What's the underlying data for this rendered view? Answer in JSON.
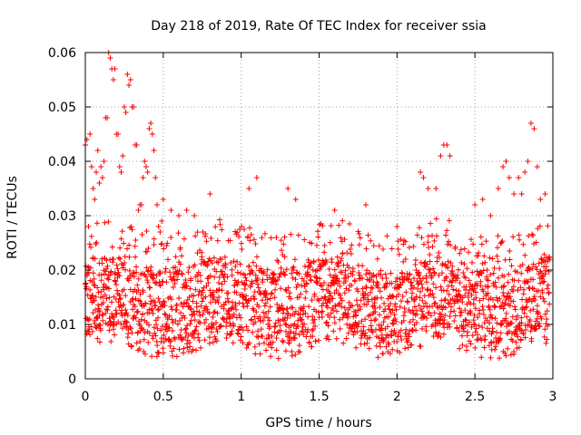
{
  "colors": {
    "points": "#ff0000",
    "grid": "#a0a0a0",
    "axis": "#000000",
    "background": "#ffffff"
  },
  "chart_data": {
    "type": "scatter",
    "title": "Day 218 of 2019, Rate Of TEC Index for receiver ssia",
    "xlabel": "GPS time / hours",
    "ylabel": "ROTI / TECUs",
    "xlim": [
      0,
      3
    ],
    "ylim": [
      0,
      0.06
    ],
    "xticks": [
      0,
      0.5,
      1,
      1.5,
      2,
      2.5,
      3
    ],
    "xtick_labels": [
      "0",
      "0.5",
      "1",
      "1.5",
      "2",
      "2.5",
      "3"
    ],
    "yticks": [
      0,
      0.01,
      0.02,
      0.03,
      0.04,
      0.05,
      0.06
    ],
    "ytick_labels": [
      "0",
      "0.01",
      "0.02",
      "0.03",
      "0.04",
      "0.05",
      "0.06"
    ],
    "grid": true,
    "marker": "plus",
    "band": {
      "core_min": 0.005,
      "core_max": 0.028,
      "density": "approx. 2200 samples over 0-3 h"
    },
    "series": [
      {
        "name": "ROTI",
        "x": [
          0.0,
          0.01,
          0.02,
          0.03,
          0.04,
          0.05,
          0.06,
          0.07,
          0.08,
          0.09,
          0.1,
          0.11,
          0.12,
          0.13,
          0.14,
          0.15,
          0.16,
          0.17,
          0.18,
          0.19,
          0.2,
          0.21,
          0.22,
          0.23,
          0.24,
          0.25,
          0.26,
          0.27,
          0.28,
          0.29,
          0.3,
          0.31,
          0.32,
          0.33,
          0.34,
          0.35,
          0.36,
          0.37,
          0.38,
          0.39,
          0.4,
          0.41,
          0.42,
          0.43,
          0.44,
          0.45,
          0.46,
          0.47,
          0.48,
          0.49,
          0.5,
          0.55,
          0.6,
          0.65,
          0.7,
          2.15,
          2.17,
          2.2,
          2.25,
          2.28,
          2.3,
          2.32,
          2.34,
          2.5,
          2.55,
          2.6,
          2.65,
          2.68,
          2.7,
          2.72,
          2.75,
          2.78,
          2.8,
          2.82,
          2.84,
          2.86,
          2.88,
          2.9,
          2.92,
          2.95,
          1.05,
          1.1,
          1.3,
          1.35,
          1.8,
          0.8,
          1.6,
          2.0
        ],
        "y": [
          0.043,
          0.044,
          0.028,
          0.045,
          0.039,
          0.035,
          0.033,
          0.038,
          0.042,
          0.036,
          0.039,
          0.037,
          0.04,
          0.048,
          0.048,
          0.06,
          0.059,
          0.057,
          0.055,
          0.057,
          0.045,
          0.045,
          0.039,
          0.038,
          0.041,
          0.05,
          0.049,
          0.056,
          0.054,
          0.055,
          0.05,
          0.05,
          0.043,
          0.043,
          0.031,
          0.032,
          0.032,
          0.037,
          0.04,
          0.039,
          0.038,
          0.046,
          0.047,
          0.045,
          0.042,
          0.037,
          0.032,
          0.028,
          0.027,
          0.029,
          0.033,
          0.031,
          0.03,
          0.031,
          0.03,
          0.038,
          0.037,
          0.035,
          0.035,
          0.041,
          0.043,
          0.043,
          0.041,
          0.032,
          0.033,
          0.03,
          0.035,
          0.039,
          0.04,
          0.037,
          0.034,
          0.037,
          0.034,
          0.038,
          0.04,
          0.047,
          0.046,
          0.039,
          0.033,
          0.034,
          0.035,
          0.037,
          0.035,
          0.033,
          0.032,
          0.034,
          0.031,
          0.028
        ]
      }
    ]
  }
}
